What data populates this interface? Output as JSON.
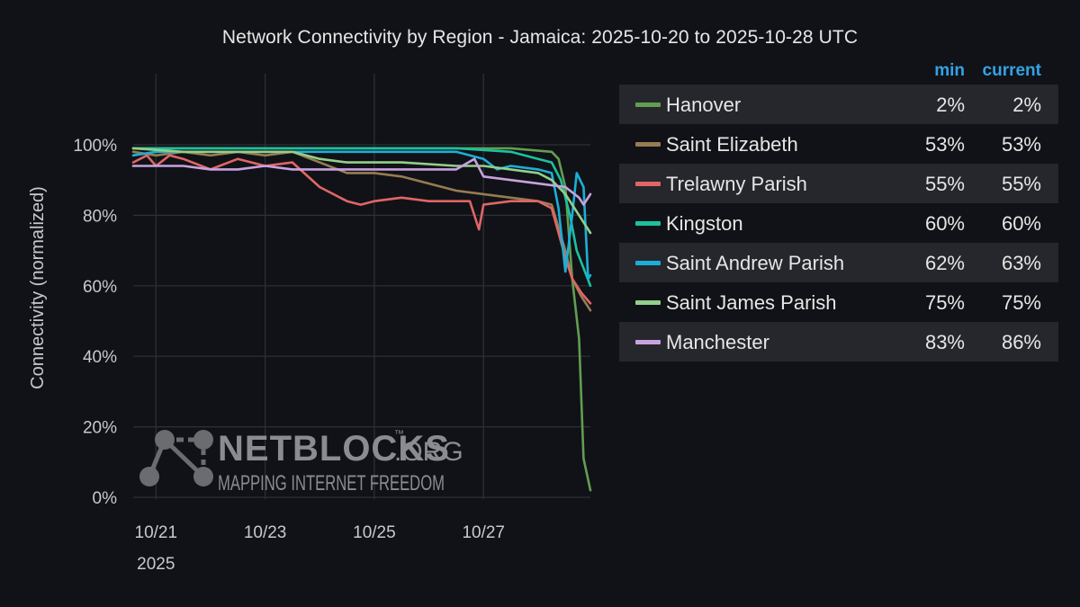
{
  "chart_data": {
    "type": "line",
    "title": "Network Connectivity by Region - Jamaica: 2025-10-20 to 2025-10-28 UTC",
    "ylabel": "Connectivity (normalized)",
    "xlabel": "",
    "ylim": [
      0,
      100
    ],
    "xlim": [
      "2025-10-20T14:00",
      "2025-10-28T23:00"
    ],
    "y_ticks": [
      "0%",
      "20%",
      "40%",
      "60%",
      "80%",
      "100%"
    ],
    "x_ticks": [
      {
        "at": "2025-10-21",
        "label": "10/21",
        "sublabel": "2025"
      },
      {
        "at": "2025-10-23",
        "label": "10/23",
        "sublabel": ""
      },
      {
        "at": "2025-10-25",
        "label": "10/25",
        "sublabel": ""
      },
      {
        "at": "2025-10-27",
        "label": "10/27",
        "sublabel": ""
      }
    ],
    "grid": true,
    "legend_position": "right",
    "legend_columns": {
      "min": "min",
      "current": "current"
    },
    "series": [
      {
        "name": "Hanover",
        "color": "#629e51",
        "min": "2%",
        "current": "2%",
        "points": [
          [
            "2025-10-20T14:00",
            99
          ],
          [
            "2025-10-21T12:00",
            99
          ],
          [
            "2025-10-22T12:00",
            99
          ],
          [
            "2025-10-23T12:00",
            99
          ],
          [
            "2025-10-24T12:00",
            99
          ],
          [
            "2025-10-25T12:00",
            99
          ],
          [
            "2025-10-26T12:00",
            99
          ],
          [
            "2025-10-27T12:00",
            99
          ],
          [
            "2025-10-28T06:00",
            98
          ],
          [
            "2025-10-28T09:00",
            96
          ],
          [
            "2025-10-28T12:00",
            88
          ],
          [
            "2025-10-28T15:00",
            62
          ],
          [
            "2025-10-28T18:00",
            45
          ],
          [
            "2025-10-28T20:00",
            11
          ],
          [
            "2025-10-28T23:00",
            2
          ]
        ]
      },
      {
        "name": "Saint Elizabeth",
        "color": "#967c52",
        "min": "53%",
        "current": "53%",
        "points": [
          [
            "2025-10-20T14:00",
            98
          ],
          [
            "2025-10-21T00:00",
            97
          ],
          [
            "2025-10-21T12:00",
            98
          ],
          [
            "2025-10-22T00:00",
            97
          ],
          [
            "2025-10-22T12:00",
            98
          ],
          [
            "2025-10-23T00:00",
            97
          ],
          [
            "2025-10-23T12:00",
            98
          ],
          [
            "2025-10-24T00:00",
            95
          ],
          [
            "2025-10-24T12:00",
            92
          ],
          [
            "2025-10-25T00:00",
            92
          ],
          [
            "2025-10-25T12:00",
            91
          ],
          [
            "2025-10-26T00:00",
            89
          ],
          [
            "2025-10-26T12:00",
            87
          ],
          [
            "2025-10-27T00:00",
            86
          ],
          [
            "2025-10-27T12:00",
            85
          ],
          [
            "2025-10-28T00:00",
            84
          ],
          [
            "2025-10-28T06:00",
            83
          ],
          [
            "2025-10-28T12:00",
            70
          ],
          [
            "2025-10-28T15:00",
            62
          ],
          [
            "2025-10-28T19:00",
            57
          ],
          [
            "2025-10-28T23:00",
            53
          ]
        ]
      },
      {
        "name": "Trelawny Parish",
        "color": "#e06666",
        "min": "55%",
        "current": "55%",
        "points": [
          [
            "2025-10-20T14:00",
            95
          ],
          [
            "2025-10-20T20:00",
            97
          ],
          [
            "2025-10-21T00:00",
            94
          ],
          [
            "2025-10-21T06:00",
            97
          ],
          [
            "2025-10-21T12:00",
            96
          ],
          [
            "2025-10-22T00:00",
            93
          ],
          [
            "2025-10-22T12:00",
            96
          ],
          [
            "2025-10-23T00:00",
            94
          ],
          [
            "2025-10-23T12:00",
            95
          ],
          [
            "2025-10-24T00:00",
            88
          ],
          [
            "2025-10-24T06:00",
            86
          ],
          [
            "2025-10-24T12:00",
            84
          ],
          [
            "2025-10-24T18:00",
            83
          ],
          [
            "2025-10-25T00:00",
            84
          ],
          [
            "2025-10-25T12:00",
            85
          ],
          [
            "2025-10-26T00:00",
            84
          ],
          [
            "2025-10-26T12:00",
            84
          ],
          [
            "2025-10-26T18:00",
            84
          ],
          [
            "2025-10-26T22:00",
            76
          ],
          [
            "2025-10-27T00:00",
            83
          ],
          [
            "2025-10-27T12:00",
            84
          ],
          [
            "2025-10-28T00:00",
            84
          ],
          [
            "2025-10-28T06:00",
            82
          ],
          [
            "2025-10-28T12:00",
            68
          ],
          [
            "2025-10-28T15:00",
            62
          ],
          [
            "2025-10-28T19:00",
            58
          ],
          [
            "2025-10-28T23:00",
            55
          ]
        ]
      },
      {
        "name": "Kingston",
        "color": "#1ac2a0",
        "min": "60%",
        "current": "60%",
        "points": [
          [
            "2025-10-20T14:00",
            99
          ],
          [
            "2025-10-21T12:00",
            99
          ],
          [
            "2025-10-22T12:00",
            99
          ],
          [
            "2025-10-23T12:00",
            99
          ],
          [
            "2025-10-24T12:00",
            99
          ],
          [
            "2025-10-25T12:00",
            99
          ],
          [
            "2025-10-26T12:00",
            99
          ],
          [
            "2025-10-27T12:00",
            98
          ],
          [
            "2025-10-28T00:00",
            96
          ],
          [
            "2025-10-28T06:00",
            95
          ],
          [
            "2025-10-28T10:00",
            90
          ],
          [
            "2025-10-28T14:00",
            80
          ],
          [
            "2025-10-28T17:00",
            70
          ],
          [
            "2025-10-28T20:00",
            65
          ],
          [
            "2025-10-28T23:00",
            60
          ]
        ]
      },
      {
        "name": "Saint Andrew Parish",
        "color": "#1bafd8",
        "min": "62%",
        "current": "63%",
        "points": [
          [
            "2025-10-20T14:00",
            97
          ],
          [
            "2025-10-21T00:00",
            98
          ],
          [
            "2025-10-21T12:00",
            98
          ],
          [
            "2025-10-22T12:00",
            98
          ],
          [
            "2025-10-23T12:00",
            98
          ],
          [
            "2025-10-24T12:00",
            98
          ],
          [
            "2025-10-25T12:00",
            98
          ],
          [
            "2025-10-26T12:00",
            98
          ],
          [
            "2025-10-27T00:00",
            96
          ],
          [
            "2025-10-27T06:00",
            93
          ],
          [
            "2025-10-27T12:00",
            94
          ],
          [
            "2025-10-28T00:00",
            93
          ],
          [
            "2025-10-28T06:00",
            92
          ],
          [
            "2025-10-28T09:00",
            82
          ],
          [
            "2025-10-28T12:00",
            64
          ],
          [
            "2025-10-28T15:00",
            80
          ],
          [
            "2025-10-28T17:00",
            92
          ],
          [
            "2025-10-28T20:00",
            88
          ],
          [
            "2025-10-28T22:00",
            62
          ],
          [
            "2025-10-28T23:00",
            63
          ]
        ]
      },
      {
        "name": "Saint James Parish",
        "color": "#93cf8a",
        "min": "75%",
        "current": "75%",
        "points": [
          [
            "2025-10-20T14:00",
            99
          ],
          [
            "2025-10-21T12:00",
            98
          ],
          [
            "2025-10-22T12:00",
            98
          ],
          [
            "2025-10-23T12:00",
            98
          ],
          [
            "2025-10-24T00:00",
            96
          ],
          [
            "2025-10-24T12:00",
            95
          ],
          [
            "2025-10-25T12:00",
            95
          ],
          [
            "2025-10-26T12:00",
            94
          ],
          [
            "2025-10-27T00:00",
            94
          ],
          [
            "2025-10-27T12:00",
            93
          ],
          [
            "2025-10-28T00:00",
            92
          ],
          [
            "2025-10-28T06:00",
            90
          ],
          [
            "2025-10-28T12:00",
            86
          ],
          [
            "2025-10-28T18:00",
            80
          ],
          [
            "2025-10-28T23:00",
            75
          ]
        ]
      },
      {
        "name": "Manchester",
        "color": "#c8a2df",
        "min": "83%",
        "current": "86%",
        "points": [
          [
            "2025-10-20T14:00",
            94
          ],
          [
            "2025-10-21T12:00",
            94
          ],
          [
            "2025-10-22T00:00",
            93
          ],
          [
            "2025-10-22T12:00",
            93
          ],
          [
            "2025-10-23T00:00",
            94
          ],
          [
            "2025-10-23T12:00",
            93
          ],
          [
            "2025-10-24T12:00",
            93
          ],
          [
            "2025-10-25T12:00",
            93
          ],
          [
            "2025-10-26T12:00",
            93
          ],
          [
            "2025-10-26T20:00",
            96
          ],
          [
            "2025-10-27T00:00",
            91
          ],
          [
            "2025-10-27T12:00",
            90
          ],
          [
            "2025-10-28T00:00",
            89
          ],
          [
            "2025-10-28T12:00",
            88
          ],
          [
            "2025-10-28T18:00",
            85
          ],
          [
            "2025-10-28T20:00",
            83
          ],
          [
            "2025-10-28T23:00",
            86
          ]
        ]
      }
    ]
  },
  "watermark": {
    "brand": "NETBLOCKS",
    "tld": ".ORG",
    "tm": "™",
    "tagline": "MAPPING INTERNET FREEDOM"
  }
}
